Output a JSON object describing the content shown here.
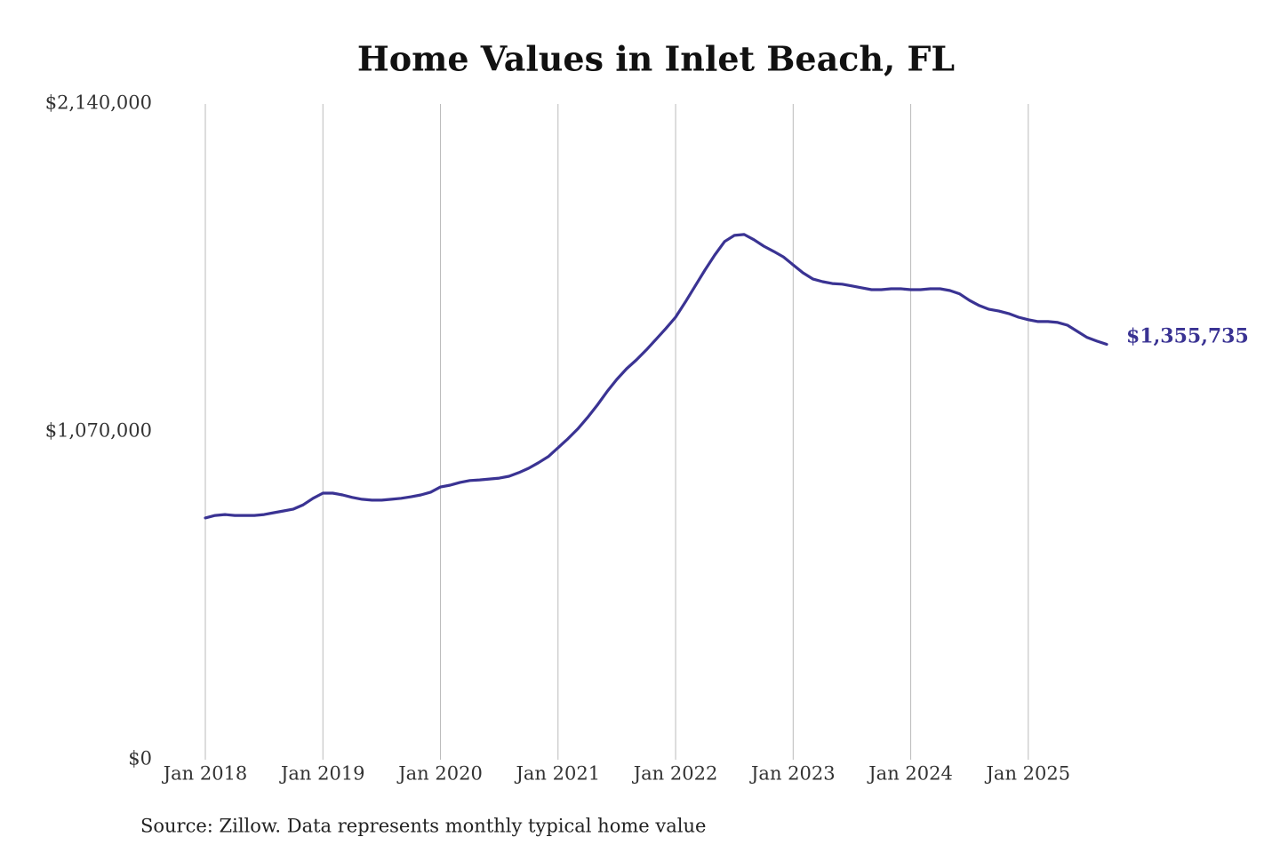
{
  "chart_data": {
    "type": "line",
    "title": "Home Values in Inlet Beach, FL",
    "source": "Source: Zillow. Data represents monthly typical home value",
    "x": [
      "2018-01",
      "2018-02",
      "2018-03",
      "2018-04",
      "2018-05",
      "2018-06",
      "2018-07",
      "2018-08",
      "2018-09",
      "2018-10",
      "2018-11",
      "2018-12",
      "2019-01",
      "2019-02",
      "2019-03",
      "2019-04",
      "2019-05",
      "2019-06",
      "2019-07",
      "2019-08",
      "2019-09",
      "2019-10",
      "2019-11",
      "2019-12",
      "2020-01",
      "2020-02",
      "2020-03",
      "2020-04",
      "2020-05",
      "2020-06",
      "2020-07",
      "2020-08",
      "2020-09",
      "2020-10",
      "2020-11",
      "2020-12",
      "2021-01",
      "2021-02",
      "2021-03",
      "2021-04",
      "2021-05",
      "2021-06",
      "2021-07",
      "2021-08",
      "2021-09",
      "2021-10",
      "2021-11",
      "2021-12",
      "2022-01",
      "2022-02",
      "2022-03",
      "2022-04",
      "2022-05",
      "2022-06",
      "2022-07",
      "2022-08",
      "2022-09",
      "2022-10",
      "2022-11",
      "2022-12",
      "2023-01",
      "2023-02",
      "2023-03",
      "2023-04",
      "2023-05",
      "2023-06",
      "2023-07",
      "2023-08",
      "2023-09",
      "2023-10",
      "2023-11",
      "2023-12",
      "2024-01",
      "2024-02",
      "2024-03",
      "2024-04",
      "2024-05",
      "2024-06",
      "2024-07",
      "2024-08",
      "2024-09",
      "2024-10",
      "2024-11",
      "2024-12",
      "2025-01",
      "2025-02",
      "2025-03",
      "2025-04",
      "2025-05",
      "2025-06",
      "2025-07",
      "2025-08",
      "2025-09"
    ],
    "series": [
      {
        "color": "#3a3393",
        "values": [
          789000,
          797000,
          800000,
          797000,
          797000,
          797000,
          800000,
          806000,
          812000,
          818000,
          832000,
          853000,
          870000,
          870000,
          864000,
          856000,
          850000,
          847000,
          847000,
          850000,
          853000,
          858000,
          864000,
          873000,
          890000,
          896000,
          905000,
          911000,
          913000,
          916000,
          919000,
          925000,
          937000,
          951000,
          969000,
          989000,
          1018000,
          1047000,
          1079000,
          1116000,
          1157000,
          1201000,
          1241000,
          1276000,
          1305000,
          1337000,
          1372000,
          1407000,
          1444000,
          1494000,
          1546000,
          1598000,
          1647000,
          1691000,
          1711000,
          1714000,
          1697000,
          1676000,
          1659000,
          1641000,
          1615000,
          1589000,
          1569000,
          1560000,
          1554000,
          1552000,
          1546000,
          1540000,
          1534000,
          1534000,
          1537000,
          1537000,
          1534000,
          1534000,
          1537000,
          1537000,
          1531000,
          1520000,
          1499000,
          1482000,
          1470000,
          1464000,
          1456000,
          1444000,
          1436000,
          1430000,
          1430000,
          1427000,
          1418000,
          1398000,
          1378000,
          1366000,
          1355735
        ],
        "value_labels": [
          null,
          null,
          null,
          null,
          null,
          null,
          null,
          null,
          null,
          null,
          null,
          null,
          null,
          null,
          null,
          null,
          null,
          null,
          null,
          null,
          null,
          null,
          null,
          null,
          null,
          null,
          null,
          null,
          null,
          null,
          null,
          null,
          null,
          null,
          null,
          null,
          null,
          null,
          null,
          null,
          null,
          null,
          null,
          null,
          null,
          null,
          null,
          null,
          null,
          null,
          null,
          null,
          null,
          null,
          null,
          null,
          null,
          null,
          null,
          null,
          null,
          null,
          null,
          null,
          null,
          null,
          null,
          null,
          null,
          null,
          null,
          null,
          null,
          null,
          null,
          null,
          null,
          null,
          null,
          null,
          null,
          null,
          null,
          null,
          null,
          null,
          null,
          null,
          null,
          null,
          null,
          null,
          "$1,355,735"
        ]
      }
    ],
    "xlim": [
      "2018-01",
      "2025-09"
    ],
    "xticks": [
      {
        "value": "2018-01",
        "label": "Jan 2018"
      },
      {
        "value": "2019-01",
        "label": "Jan 2019"
      },
      {
        "value": "2020-01",
        "label": "Jan 2020"
      },
      {
        "value": "2021-01",
        "label": "Jan 2021"
      },
      {
        "value": "2022-01",
        "label": "Jan 2022"
      },
      {
        "value": "2023-01",
        "label": "Jan 2023"
      },
      {
        "value": "2024-01",
        "label": "Jan 2024"
      },
      {
        "value": "2025-01",
        "label": "Jan 2025"
      }
    ],
    "ylim": [
      0,
      2140000
    ],
    "yticks": [
      {
        "value": 0,
        "label": "$0"
      },
      {
        "value": 1070000,
        "label": "$1,070,000"
      },
      {
        "value": 2140000,
        "label": "$2,140,000"
      }
    ],
    "grid": "x"
  }
}
